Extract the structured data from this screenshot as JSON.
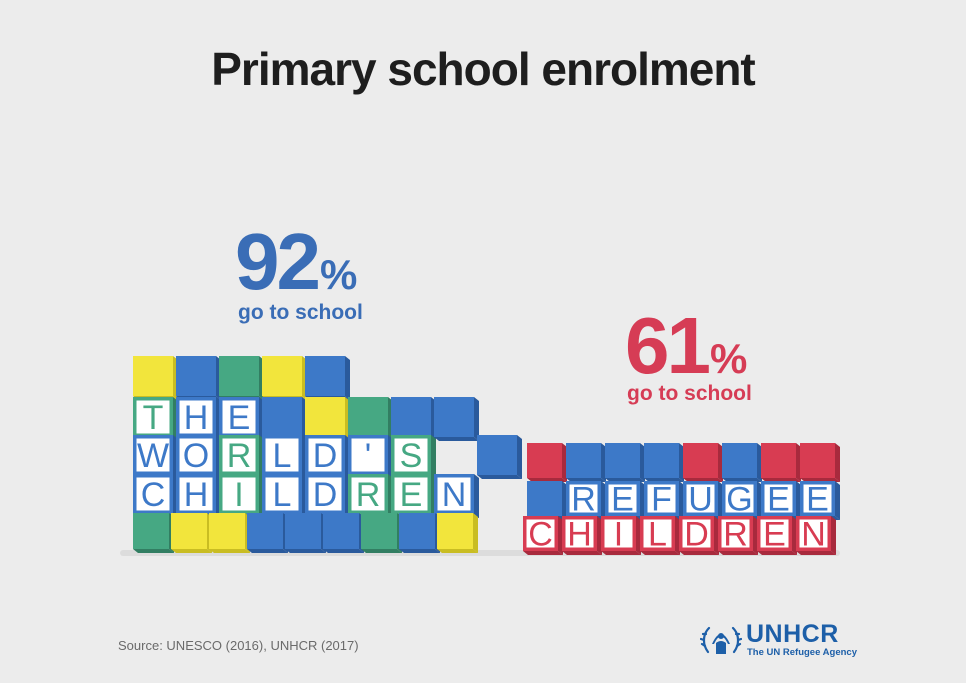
{
  "title": "Primary school enrolment",
  "chart_data": {
    "type": "bar",
    "title": "Primary school enrolment",
    "categories": [
      "THE WORLD'S CHILDREN",
      "REFUGEE CHILDREN"
    ],
    "values": [
      92,
      61
    ],
    "unit": "%",
    "caption": "go to school",
    "colors": [
      "#3a6db6",
      "#d63c55"
    ]
  },
  "labels": {
    "world_value": "92",
    "world_caption": "go to school",
    "refugee_value": "61",
    "refugee_caption": "go to school",
    "percent_sign": "%"
  },
  "block_text": {
    "world_rows": [
      "THE",
      "WORLD'S",
      "CHILDREN"
    ],
    "refugee_rows": [
      "REFUGEE",
      "CHILDREN"
    ]
  },
  "source": "Source: UNESCO (2016), UNHCR (2017)",
  "logo": {
    "name": "UNHCR",
    "tagline": "The UN Refugee Agency",
    "icon": "unhcr-emblem-icon"
  }
}
